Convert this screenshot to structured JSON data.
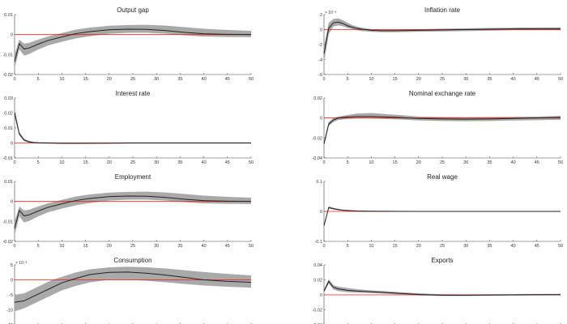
{
  "chart_data": [
    {
      "type": "line",
      "title": "Output gap",
      "xlim": [
        0,
        50
      ],
      "ylim": [
        -0.02,
        0.01
      ],
      "xticks": [
        0,
        5,
        10,
        15,
        20,
        25,
        30,
        35,
        40,
        45,
        50
      ],
      "xtick_labels": [
        "0",
        "5",
        "10",
        "15",
        "20",
        "25",
        "30",
        "35",
        "40",
        "45",
        "50"
      ],
      "yticks": [
        -0.02,
        -0.01,
        0,
        0.01
      ],
      "ytick_labels": [
        "-0.02",
        "-0.01",
        "0",
        "0.01"
      ],
      "exponent_label": "",
      "zero_line": 0,
      "x": [
        0,
        1,
        2,
        3,
        5,
        7,
        10,
        13,
        16,
        20,
        24,
        28,
        32,
        36,
        40,
        45,
        50
      ],
      "median": [
        -0.0135,
        -0.0045,
        -0.0072,
        -0.0068,
        -0.0048,
        -0.003,
        -0.0012,
        0.0005,
        0.0015,
        0.0024,
        0.0027,
        0.0026,
        0.002,
        0.0011,
        0.0004,
        0.0001,
        0.0
      ],
      "lower": [
        -0.017,
        -0.0075,
        -0.0105,
        -0.0098,
        -0.0075,
        -0.0055,
        -0.0036,
        -0.0019,
        -0.0008,
        0.0004,
        0.0009,
        0.0009,
        0.0004,
        -0.0004,
        -0.001,
        -0.0012,
        -0.0013
      ],
      "upper": [
        -0.01,
        -0.0025,
        -0.0045,
        -0.0042,
        -0.0025,
        -0.001,
        0.0008,
        0.0025,
        0.0035,
        0.0044,
        0.0048,
        0.0049,
        0.0045,
        0.0037,
        0.0029,
        0.0023,
        0.0019
      ],
      "series_color": "#222222",
      "band_color": "#a9a9a9",
      "zero_color": "#e8211b"
    },
    {
      "type": "line",
      "title": "Inflation rate",
      "xlim": [
        0,
        50
      ],
      "ylim": [
        -6,
        2
      ],
      "xticks": [
        0,
        5,
        10,
        15,
        20,
        25,
        30,
        35,
        40,
        45,
        50
      ],
      "xtick_labels": [
        "0",
        "5",
        "10",
        "15",
        "20",
        "25",
        "30",
        "35",
        "40",
        "45",
        "50"
      ],
      "yticks": [
        -6,
        -4,
        -2,
        0,
        2
      ],
      "ytick_labels": [
        "-6",
        "-4",
        "-2",
        "0",
        "2"
      ],
      "exponent_label": "× 10⁻³",
      "zero_line": 0,
      "x": [
        0,
        1,
        2,
        3,
        4,
        5,
        6,
        7,
        8,
        10,
        12,
        15,
        20,
        25,
        30,
        35,
        40,
        45,
        50
      ],
      "median": [
        -3.2,
        0.2,
        0.9,
        1.0,
        0.8,
        0.5,
        0.3,
        0.15,
        0.05,
        -0.1,
        -0.15,
        -0.15,
        -0.1,
        -0.05,
        0,
        0.05,
        0.1,
        0.1,
        0.1
      ],
      "lower": [
        -4.4,
        -0.6,
        0.4,
        0.55,
        0.45,
        0.2,
        0.05,
        -0.1,
        -0.2,
        -0.3,
        -0.35,
        -0.35,
        -0.3,
        -0.25,
        -0.2,
        -0.15,
        -0.1,
        -0.1,
        -0.1
      ],
      "upper": [
        -2.2,
        0.9,
        1.4,
        1.5,
        1.25,
        0.9,
        0.6,
        0.4,
        0.25,
        0.05,
        0,
        0,
        0.05,
        0.12,
        0.18,
        0.22,
        0.25,
        0.28,
        0.3
      ],
      "series_color": "#222222",
      "band_color": "#a9a9a9",
      "zero_color": "#e8211b"
    },
    {
      "type": "line",
      "title": "Interest rate",
      "xlim": [
        0,
        50
      ],
      "ylim": [
        -0.01,
        0.03
      ],
      "xticks": [
        0,
        5,
        10,
        15,
        20,
        25,
        30,
        35,
        40,
        45,
        50
      ],
      "xtick_labels": [
        "0",
        "5",
        "10",
        "15",
        "20",
        "25",
        "30",
        "35",
        "40",
        "45",
        "50"
      ],
      "yticks": [
        -0.01,
        0,
        0.01,
        0.02,
        0.03
      ],
      "ytick_labels": [
        "-0.01",
        "0",
        "0.01",
        "0.02",
        "0.03"
      ],
      "exponent_label": "",
      "zero_line": 0,
      "x": [
        0,
        1,
        2,
        3,
        4,
        5,
        7,
        10,
        15,
        20,
        25,
        30,
        35,
        40,
        45,
        50
      ],
      "median": [
        0.02,
        0.006,
        0.002,
        0.0008,
        0.0003,
        0.0001,
        0,
        -0.0002,
        -0.0002,
        -0.0001,
        0,
        0,
        0,
        0,
        0,
        0
      ],
      "lower": [
        0.018,
        0.005,
        0.0012,
        0.0002,
        -0.0002,
        -0.0004,
        -0.0005,
        -0.0006,
        -0.0006,
        -0.0005,
        -0.0004,
        -0.0004,
        -0.0004,
        -0.0004,
        -0.0004,
        -0.0004
      ],
      "upper": [
        0.023,
        0.0075,
        0.003,
        0.0014,
        0.0008,
        0.0005,
        0.0004,
        0.0002,
        0.0002,
        0.0003,
        0.0004,
        0.0004,
        0.0004,
        0.0004,
        0.0004,
        0.0004
      ],
      "series_color": "#222222",
      "band_color": "#a9a9a9",
      "zero_color": "#e8211b"
    },
    {
      "type": "line",
      "title": "Nominal exchange rate",
      "xlim": [
        0,
        50
      ],
      "ylim": [
        -0.04,
        0.02
      ],
      "xticks": [
        0,
        5,
        10,
        15,
        20,
        25,
        30,
        35,
        40,
        45,
        50
      ],
      "xtick_labels": [
        "0",
        "5",
        "10",
        "15",
        "20",
        "25",
        "30",
        "35",
        "40",
        "45",
        "50"
      ],
      "yticks": [
        -0.04,
        -0.02,
        0,
        0.02
      ],
      "ytick_labels": [
        "-0.04",
        "-0.02",
        "0",
        "0.02"
      ],
      "exponent_label": "",
      "zero_line": 0,
      "x": [
        0,
        1,
        2,
        3,
        5,
        7,
        10,
        13,
        16,
        20,
        25,
        30,
        35,
        40,
        45,
        50
      ],
      "median": [
        -0.026,
        -0.006,
        -0.002,
        0,
        0.001,
        0.0015,
        0.0015,
        0.001,
        0.0005,
        -0.0005,
        -0.001,
        -0.0012,
        -0.001,
        -0.0005,
        0,
        0.0005
      ],
      "lower": [
        -0.028,
        -0.008,
        -0.004,
        -0.002,
        -0.001,
        -0.0005,
        -0.0005,
        -0.001,
        -0.0015,
        -0.0025,
        -0.003,
        -0.0032,
        -0.003,
        -0.0025,
        -0.0022,
        -0.0018
      ],
      "upper": [
        -0.023,
        -0.004,
        0,
        0.0015,
        0.003,
        0.0045,
        0.005,
        0.004,
        0.003,
        0.0015,
        0.001,
        0.0008,
        0.001,
        0.0012,
        0.0015,
        0.0022
      ],
      "series_color": "#222222",
      "band_color": "#a9a9a9",
      "zero_color": "#e8211b"
    },
    {
      "type": "line",
      "title": "Employment",
      "xlim": [
        0,
        50
      ],
      "ylim": [
        -0.02,
        0.01
      ],
      "xticks": [
        0,
        5,
        10,
        15,
        20,
        25,
        30,
        35,
        40,
        45,
        50
      ],
      "xtick_labels": [
        "0",
        "5",
        "10",
        "15",
        "20",
        "25",
        "30",
        "35",
        "40",
        "45",
        "50"
      ],
      "yticks": [
        -0.02,
        -0.01,
        0,
        0.01
      ],
      "ytick_labels": [
        "-0.02",
        "-0.01",
        "0",
        "0.01"
      ],
      "exponent_label": "",
      "zero_line": 0,
      "x": [
        0,
        1,
        2,
        3,
        5,
        7,
        10,
        13,
        16,
        20,
        24,
        28,
        32,
        36,
        40,
        45,
        50
      ],
      "median": [
        -0.0135,
        -0.0045,
        -0.0072,
        -0.0068,
        -0.0048,
        -0.003,
        -0.0012,
        0.0005,
        0.0015,
        0.0024,
        0.0027,
        0.0026,
        0.002,
        0.0011,
        0.0004,
        0.0001,
        0.0
      ],
      "lower": [
        -0.017,
        -0.0075,
        -0.0105,
        -0.0098,
        -0.0075,
        -0.0055,
        -0.0036,
        -0.0019,
        -0.0008,
        0.0004,
        0.0009,
        0.0009,
        0.0004,
        -0.0004,
        -0.001,
        -0.0012,
        -0.0013
      ],
      "upper": [
        -0.01,
        -0.0025,
        -0.0045,
        -0.0042,
        -0.0025,
        -0.001,
        0.0008,
        0.0025,
        0.0035,
        0.0044,
        0.0048,
        0.0049,
        0.0045,
        0.0037,
        0.0029,
        0.0023,
        0.0019
      ],
      "series_color": "#222222",
      "band_color": "#a9a9a9",
      "zero_color": "#e8211b"
    },
    {
      "type": "line",
      "title": "Real wage",
      "xlim": [
        0,
        50
      ],
      "ylim": [
        -0.1,
        0.1
      ],
      "xticks": [
        0,
        5,
        10,
        15,
        20,
        25,
        30,
        35,
        40,
        45,
        50
      ],
      "xtick_labels": [
        "0",
        "5",
        "10",
        "15",
        "20",
        "25",
        "30",
        "35",
        "40",
        "45",
        "50"
      ],
      "yticks": [
        -0.1,
        0,
        0.1
      ],
      "ytick_labels": [
        "-0.1",
        "0",
        "0.1"
      ],
      "exponent_label": "",
      "zero_line": 0,
      "x": [
        0,
        1,
        2,
        3,
        4,
        5,
        7,
        10,
        15,
        20,
        30,
        40,
        50
      ],
      "median": [
        -0.048,
        0.013,
        0.009,
        0.006,
        0.004,
        0.003,
        0.0015,
        0.0006,
        0.0002,
        0,
        0,
        0,
        0
      ],
      "lower": [
        -0.052,
        0.009,
        0.006,
        0.0035,
        0.002,
        0.001,
        0,
        -0.0008,
        -0.0012,
        -0.0015,
        -0.0015,
        -0.0015,
        -0.0015
      ],
      "upper": [
        -0.044,
        0.017,
        0.012,
        0.0085,
        0.006,
        0.0045,
        0.003,
        0.002,
        0.0015,
        0.0015,
        0.0015,
        0.0015,
        0.0015
      ],
      "series_color": "#222222",
      "band_color": "#a9a9a9",
      "zero_color": "#e8211b"
    },
    {
      "type": "line",
      "title": "Consumption",
      "xlim": [
        0,
        50
      ],
      "ylim": [
        -15,
        5
      ],
      "xticks": [
        0,
        5,
        10,
        15,
        20,
        25,
        30,
        35,
        40,
        45,
        50
      ],
      "xtick_labels": [
        "0",
        "5",
        "10",
        "15",
        "20",
        "25",
        "30",
        "35",
        "40",
        "45",
        "50"
      ],
      "yticks": [
        -15,
        -10,
        -5,
        0,
        5
      ],
      "ytick_labels": [
        "-15",
        "-10",
        "-5",
        "0",
        "5"
      ],
      "exponent_label": "× 10⁻³",
      "zero_line": 0,
      "x": [
        0,
        2,
        4,
        6,
        8,
        10,
        13,
        16,
        20,
        24,
        28,
        32,
        36,
        40,
        45,
        50
      ],
      "median": [
        -7.5,
        -7,
        -5.5,
        -4,
        -2.5,
        -1,
        0.5,
        1.8,
        2.5,
        2.6,
        2.2,
        1.6,
        0.8,
        0,
        -0.5,
        -0.8
      ],
      "lower": [
        -10.5,
        -9.5,
        -8,
        -6.5,
        -5,
        -3.5,
        -2,
        -0.8,
        0,
        0,
        -0.3,
        -0.8,
        -1.4,
        -1.9,
        -2.3,
        -2.6
      ],
      "upper": [
        -5,
        -4.5,
        -3,
        -1.5,
        0,
        1,
        2.5,
        3.5,
        4.2,
        4.4,
        4.2,
        3.8,
        3.2,
        2.6,
        2.0,
        1.5
      ],
      "series_color": "#222222",
      "band_color": "#a9a9a9",
      "zero_color": "#e8211b"
    },
    {
      "type": "line",
      "title": "Exports",
      "xlim": [
        0,
        50
      ],
      "ylim": [
        -0.04,
        0.04
      ],
      "xticks": [
        0,
        5,
        10,
        15,
        20,
        25,
        30,
        35,
        40,
        45,
        50
      ],
      "xtick_labels": [
        "0",
        "5",
        "10",
        "15",
        "20",
        "25",
        "30",
        "35",
        "40",
        "45",
        "50"
      ],
      "yticks": [
        -0.04,
        -0.02,
        0,
        0.02,
        0.04
      ],
      "ytick_labels": [
        "-0.04",
        "-0.02",
        "0",
        "0.02",
        "0.04"
      ],
      "exponent_label": "",
      "zero_line": 0,
      "x": [
        0,
        1,
        2,
        3,
        5,
        7,
        10,
        13,
        16,
        20,
        25,
        30,
        35,
        40,
        45,
        50
      ],
      "median": [
        0.005,
        0.018,
        0.01,
        0.008,
        0.006,
        0.005,
        0.004,
        0.003,
        0.002,
        0.0005,
        -0.0005,
        -0.0005,
        -0.0002,
        0,
        0.0002,
        0.0003
      ],
      "lower": [
        0.003,
        0.015,
        0.007,
        0.005,
        0.0035,
        0.003,
        0.0025,
        0.0015,
        0.0005,
        -0.0008,
        -0.0015,
        -0.0015,
        -0.0012,
        -0.001,
        -0.0008,
        -0.0007
      ],
      "upper": [
        0.007,
        0.021,
        0.013,
        0.011,
        0.009,
        0.0075,
        0.006,
        0.005,
        0.0035,
        0.002,
        0.0008,
        0.0005,
        0.0008,
        0.001,
        0.0012,
        0.0013
      ],
      "series_color": "#222222",
      "band_color": "#a9a9a9",
      "zero_color": "#e8211b"
    }
  ]
}
